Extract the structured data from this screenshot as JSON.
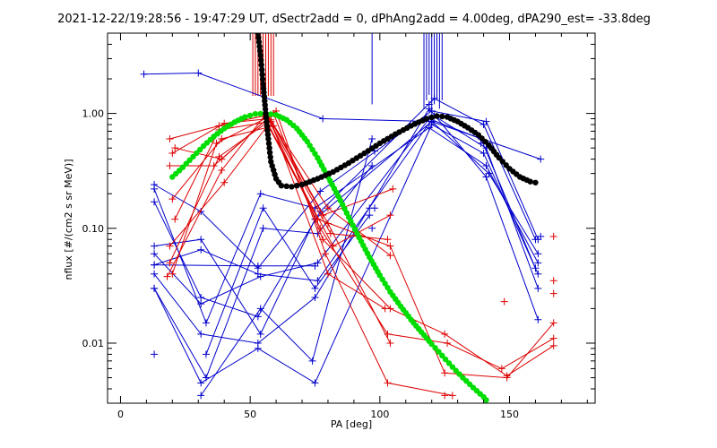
{
  "chart_data": {
    "type": "scatter",
    "title": "2021-12-22/19:28:56 - 19:47:29 UT, dSectr2add = 0, dPhAng2add = 4.00deg, dPA290_est= -33.8deg",
    "xlabel": "PA [deg]",
    "ylabel": "nflux [#/(cm2 s sr MeV)]",
    "x_range": [
      -5,
      183
    ],
    "y_range": [
      0.003,
      5
    ],
    "y_scale": "log",
    "x_ticks": [
      {
        "value": 0,
        "label": "0"
      },
      {
        "value": 50,
        "label": "50"
      },
      {
        "value": 100,
        "label": "100"
      },
      {
        "value": 150,
        "label": "150"
      }
    ],
    "y_ticks": [
      {
        "value": 0.01,
        "label": "0.01"
      },
      {
        "value": 0.1,
        "label": "0.10"
      },
      {
        "value": 1.0,
        "label": "1.00"
      }
    ],
    "colors": {
      "blue": "#0000cc",
      "red": "#dd0000",
      "green": "#00dd00",
      "black": "#000000"
    },
    "blue_traces": [
      [
        [
          9,
          2.2
        ],
        [
          30,
          2.25
        ],
        [
          78,
          0.9
        ],
        [
          120,
          0.85
        ],
        [
          162,
          0.4
        ]
      ],
      [
        [
          13,
          0.24
        ],
        [
          31,
          0.14
        ],
        [
          53,
          0.045
        ],
        [
          77,
          0.21
        ],
        [
          120,
          1.05
        ],
        [
          141,
          0.85
        ],
        [
          161,
          0.08
        ]
      ],
      [
        [
          13,
          0.22
        ],
        [
          33,
          0.015
        ],
        [
          54,
          0.2
        ],
        [
          75,
          0.15
        ],
        [
          119,
          0.75
        ],
        [
          141,
          0.35
        ],
        [
          161,
          0.05
        ]
      ],
      [
        [
          13,
          0.17
        ],
        [
          31,
          0.025
        ],
        [
          53,
          0.017
        ],
        [
          77,
          0.14
        ],
        [
          121,
          1.35
        ],
        [
          140,
          0.8
        ],
        [
          160,
          0.08
        ]
      ],
      [
        [
          13,
          0.07
        ],
        [
          31,
          0.08
        ],
        [
          54,
          0.012
        ],
        [
          75,
          0.12
        ],
        [
          120,
          0.85
        ],
        [
          142,
          0.3
        ],
        [
          161,
          0.06
        ]
      ],
      [
        [
          13,
          0.06
        ],
        [
          31,
          0.022
        ],
        [
          54,
          0.038
        ],
        [
          76,
          0.05
        ],
        [
          119,
          0.9
        ],
        [
          139,
          0.6
        ],
        [
          160,
          0.045
        ]
      ],
      [
        [
          13,
          0.048
        ],
        [
          31,
          0.065
        ],
        [
          53,
          0.04
        ],
        [
          76,
          0.035
        ],
        [
          121,
          0.95
        ],
        [
          141,
          0.5
        ],
        [
          161,
          0.03
        ]
      ],
      [
        [
          13,
          0.04
        ],
        [
          31,
          0.012
        ],
        [
          53,
          0.01
        ],
        [
          75,
          0.025
        ],
        [
          119,
          1.1
        ],
        [
          141,
          0.28
        ],
        [
          161,
          0.016
        ]
      ],
      [
        [
          13,
          0.03
        ],
        [
          31,
          0.0045
        ],
        [
          53,
          0.009
        ],
        [
          75,
          0.0045
        ],
        [
          120,
          0.8
        ],
        [
          140,
          0.45
        ],
        [
          161,
          0.04
        ]
      ],
      [
        [
          13,
          0.048
        ],
        [
          53,
          0.047
        ],
        [
          75,
          0.047
        ]
      ],
      [
        [
          31,
          0.0035
        ],
        [
          54,
          0.02
        ],
        [
          74,
          0.007
        ],
        [
          97,
          0.6
        ]
      ],
      [
        [
          33,
          0.008
        ],
        [
          55,
          0.15
        ],
        [
          75,
          0.03
        ],
        [
          96,
          0.13
        ]
      ],
      [
        [
          13,
          0.03
        ],
        [
          33,
          0.005
        ],
        [
          55,
          0.1
        ],
        [
          76,
          0.09
        ],
        [
          97,
          0.35
        ]
      ]
    ],
    "blue_extra_points": [
      [
        13,
        0.008
      ],
      [
        96,
        0.15
      ],
      [
        97,
        0.1
      ],
      [
        98,
        0.15
      ],
      [
        98,
        0.47
      ],
      [
        119,
        1.2
      ],
      [
        139,
        0.55
      ],
      [
        162,
        0.085
      ]
    ],
    "blue_spikes": [
      [
        97,
        1.2
      ],
      [
        117,
        1.1
      ],
      [
        118,
        1.3
      ],
      [
        119,
        1.45
      ],
      [
        120,
        1.05
      ],
      [
        121,
        1.2
      ],
      [
        122,
        1.35
      ],
      [
        123,
        1.1
      ],
      [
        124,
        1.3
      ]
    ],
    "red_traces": [
      [
        [
          19,
          0.6
        ],
        [
          38,
          0.78
        ],
        [
          55,
          0.95
        ],
        [
          76,
          0.12
        ],
        [
          104,
          0.07
        ],
        [
          125,
          0.0055
        ],
        [
          149,
          0.005
        ],
        [
          167,
          0.015
        ]
      ],
      [
        [
          20,
          0.45
        ],
        [
          40,
          0.82
        ],
        [
          57,
          0.9
        ],
        [
          77,
          0.1
        ],
        [
          103,
          0.012
        ],
        [
          126,
          0.01
        ],
        [
          147,
          0.006
        ],
        [
          167,
          0.011
        ]
      ],
      [
        [
          21,
          0.5
        ],
        [
          39,
          0.4
        ],
        [
          59,
          1.0
        ],
        [
          78,
          0.08
        ],
        [
          104,
          0.02
        ],
        [
          125,
          0.012
        ],
        [
          149,
          0.0052
        ],
        [
          167,
          0.0095
        ]
      ],
      [
        [
          19,
          0.35
        ],
        [
          36,
          0.35
        ],
        [
          60,
          1.05
        ],
        [
          79,
          0.06
        ],
        [
          103,
          0.0045
        ],
        [
          128,
          0.0035
        ]
      ],
      [
        [
          20,
          0.04
        ],
        [
          37,
          0.55
        ],
        [
          57,
          0.93
        ],
        [
          80,
          0.15
        ],
        [
          104,
          0.058
        ]
      ],
      [
        [
          19,
          0.05
        ],
        [
          38,
          0.42
        ],
        [
          58,
          0.88
        ],
        [
          80,
          0.11
        ],
        [
          104,
          0.01
        ]
      ],
      [
        [
          18,
          0.038
        ],
        [
          39,
          0.32
        ],
        [
          56,
          0.98
        ],
        [
          81,
          0.09
        ],
        [
          103,
          0.08
        ]
      ],
      [
        [
          19,
          0.07
        ],
        [
          40,
          0.25
        ],
        [
          57,
          0.8
        ],
        [
          82,
          0.07
        ],
        [
          104,
          0.13
        ]
      ],
      [
        [
          21,
          0.12
        ],
        [
          38,
          0.72
        ],
        [
          58,
          0.85
        ],
        [
          80,
          0.04
        ],
        [
          102,
          0.02
        ]
      ],
      [
        [
          20,
          0.18
        ],
        [
          39,
          0.6
        ],
        [
          59,
          0.78
        ],
        [
          78,
          0.13
        ],
        [
          105,
          0.22
        ]
      ]
    ],
    "red_extra_points": [
      [
        167,
        0.085
      ],
      [
        167,
        0.035
      ],
      [
        167,
        0.027
      ],
      [
        148,
        0.023
      ],
      [
        125,
        0.0035
      ]
    ],
    "red_spikes": [
      [
        51,
        5.0
      ],
      [
        52,
        5.0
      ],
      [
        53,
        5.0
      ],
      [
        54,
        5.0
      ],
      [
        55,
        5.0
      ],
      [
        56,
        5.0
      ],
      [
        57,
        5.0
      ],
      [
        58,
        5.0
      ],
      [
        59,
        5.0
      ]
    ],
    "green_curve": {
      "x": [
        20,
        24,
        28,
        32,
        36,
        40,
        44,
        48,
        52,
        56,
        60,
        64,
        68,
        72,
        76,
        80,
        84,
        88,
        92,
        96,
        100,
        104,
        108,
        112,
        116,
        120,
        124,
        128,
        132,
        136,
        140,
        141
      ],
      "y": [
        0.28,
        0.34,
        0.42,
        0.52,
        0.63,
        0.74,
        0.84,
        0.93,
        0.99,
        1.0,
        0.97,
        0.88,
        0.74,
        0.57,
        0.41,
        0.28,
        0.19,
        0.125,
        0.083,
        0.056,
        0.039,
        0.028,
        0.021,
        0.016,
        0.0125,
        0.0098,
        0.0078,
        0.0062,
        0.005,
        0.0041,
        0.0034,
        0.0032
      ]
    },
    "black_curve": {
      "x": [
        53,
        54,
        55,
        56,
        57,
        58,
        60,
        62,
        66,
        70,
        76,
        82,
        88,
        94,
        100,
        106,
        112,
        118,
        122,
        126,
        130,
        134,
        138,
        142,
        146,
        150,
        154,
        158,
        160
      ],
      "y": [
        5.0,
        3.2,
        1.8,
        1.0,
        0.6,
        0.38,
        0.27,
        0.235,
        0.23,
        0.24,
        0.27,
        0.31,
        0.37,
        0.45,
        0.55,
        0.66,
        0.78,
        0.9,
        0.95,
        0.93,
        0.85,
        0.75,
        0.65,
        0.53,
        0.41,
        0.33,
        0.28,
        0.255,
        0.25
      ]
    }
  }
}
